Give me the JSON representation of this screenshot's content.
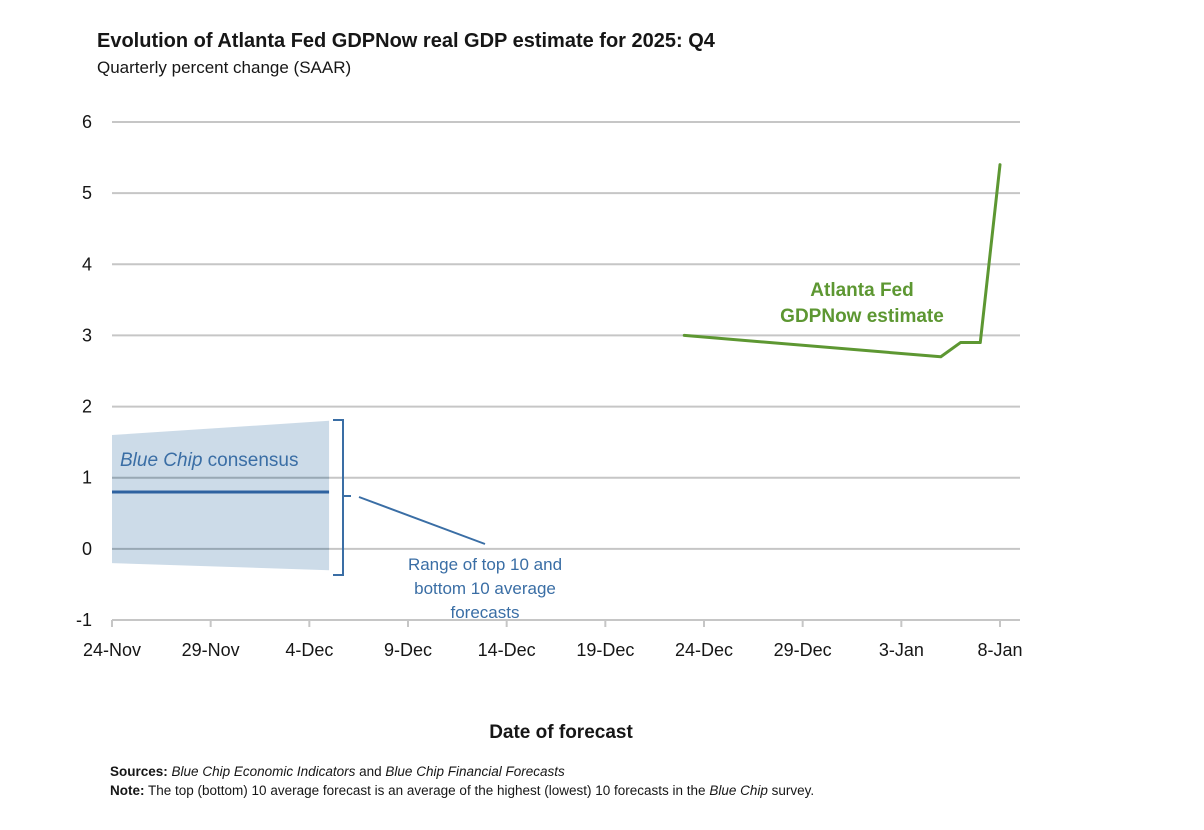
{
  "chart_data": {
    "type": "line",
    "title": "Evolution of Atlanta Fed GDPNow real GDP estimate for 2025: Q4",
    "subtitle": "Quarterly percent change (SAAR)",
    "xlabel": "Date of forecast",
    "ylabel": "",
    "ylim": [
      -1,
      6
    ],
    "yticks": [
      "6",
      "5",
      "4",
      "3",
      "2",
      "1",
      "0",
      "-1"
    ],
    "ytick_values": [
      6,
      5,
      4,
      3,
      2,
      1,
      0,
      -1
    ],
    "xlim_days": [
      0,
      45
    ],
    "xticks": [
      "24-Nov",
      "29-Nov",
      "4-Dec",
      "9-Dec",
      "14-Dec",
      "19-Dec",
      "24-Dec",
      "29-Dec",
      "3-Jan",
      "8-Jan"
    ],
    "xtick_days": [
      0,
      5,
      10,
      15,
      20,
      25,
      30,
      35,
      40,
      45
    ],
    "grid": true,
    "series": [
      {
        "name": "Atlanta Fed GDPNow estimate",
        "label_lines": [
          "Atlanta Fed",
          "GDPNow estimate"
        ],
        "color": "#5d9732",
        "x": [
          "23-Dec",
          "5-Jan",
          "6-Jan",
          "7-Jan",
          "8-Jan"
        ],
        "x_days": [
          29,
          42,
          43,
          44,
          45
        ],
        "values": [
          3.0,
          2.7,
          2.9,
          2.9,
          5.4
        ]
      },
      {
        "name": "Blue Chip consensus",
        "label_italic": "Blue Chip",
        "label_rest": " consensus",
        "color": "#2e62a0",
        "x": [
          "24-Nov",
          "5-Dec"
        ],
        "x_days": [
          0,
          11
        ],
        "values": [
          0.8,
          0.8
        ]
      },
      {
        "name": "Range of top 10 and bottom 10 average forecasts",
        "type": "area",
        "label_lines": [
          "Range of top 10 and",
          "bottom 10 average",
          "forecasts"
        ],
        "color": "#c9d9e7",
        "x_days": [
          0,
          11
        ],
        "upper": [
          1.6,
          1.8
        ],
        "lower": [
          -0.2,
          -0.3
        ]
      }
    ]
  },
  "notes": {
    "sources_label": "Sources:",
    "sources_italic1": "Blue Chip Economic Indicators",
    "sources_and": " and ",
    "sources_italic2": "Blue Chip Financial Forecasts",
    "note_label": "Note:",
    "note_text": " The top (bottom) 10 average forecast is an average of the highest (lowest) 10 forecasts in the ",
    "note_italic": "Blue Chip",
    "note_end": " survey."
  }
}
